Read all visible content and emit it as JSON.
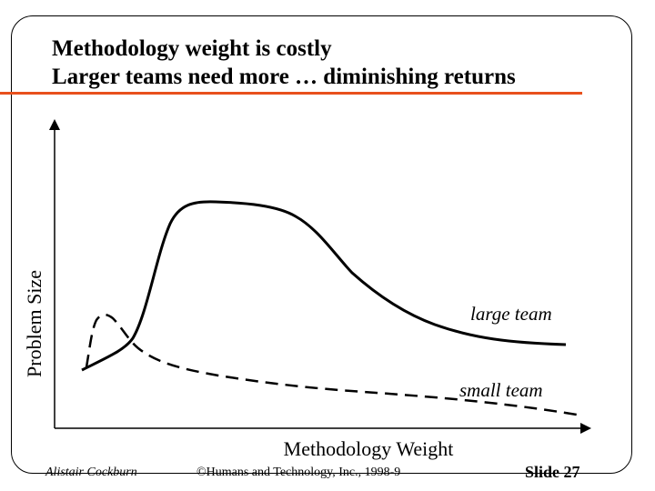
{
  "slide": {
    "title_line1": "Methodology weight is costly",
    "title_line2": "Larger teams need more … diminishing returns",
    "accent_color": "#e8501c"
  },
  "chart_data": {
    "type": "line",
    "xlabel": "Methodology Weight",
    "ylabel": "Problem Size",
    "series": [
      {
        "name": "large team",
        "style": "solid"
      },
      {
        "name": "small team",
        "style": "dashed"
      }
    ]
  },
  "footer": {
    "author": "Alistair Cockburn",
    "copyright": "©Humans and Technology, Inc., 1998-9",
    "slide_number": "Slide 27"
  }
}
